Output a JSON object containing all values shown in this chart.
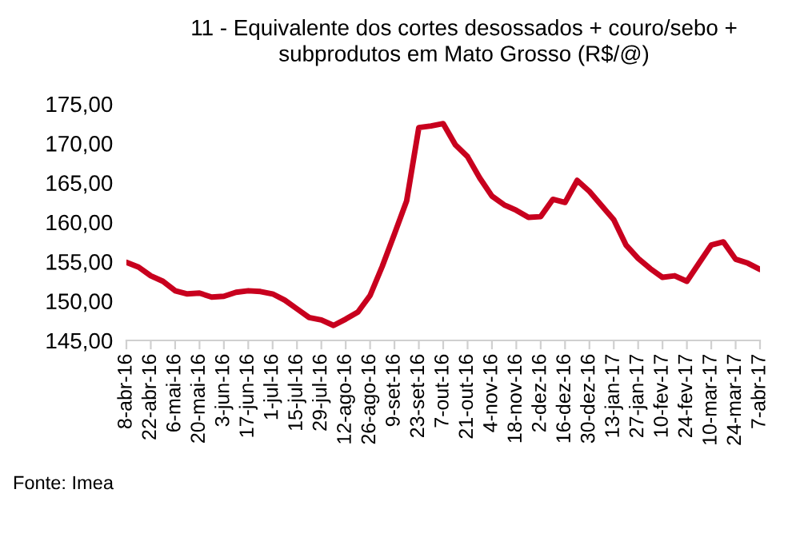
{
  "chart_data": {
    "type": "line",
    "title": "11 - Equivalente dos cortes desossados + couro/sebo +\nsubprodutos em Mato Grosso (R$/@)",
    "categories": [
      "8-abr-16",
      null,
      "22-abr-16",
      null,
      "6-mai-16",
      null,
      "20-mai-16",
      null,
      "3-jun-16",
      null,
      "17-jun-16",
      null,
      "1-jul-16",
      null,
      "15-jul-16",
      null,
      "29-jul-16",
      null,
      "12-ago-16",
      null,
      "26-ago-16",
      null,
      "9-set-16",
      null,
      "23-set-16",
      null,
      "7-out-16",
      null,
      "21-out-16",
      null,
      "4-nov-16",
      null,
      "18-nov-16",
      null,
      "2-dez-16",
      null,
      "16-dez-16",
      null,
      "30-dez-16",
      null,
      "13-jan-17",
      null,
      "27-jan-17",
      null,
      "10-fev-17",
      null,
      "24-fev-17",
      null,
      "10-mar-17",
      null,
      "24-mar-17",
      null,
      "7-abr-17"
    ],
    "series": [
      {
        "color": "#c8001e",
        "values": [
          154.9,
          154.3,
          153.2,
          152.5,
          151.3,
          150.9,
          151.0,
          150.5,
          150.6,
          151.1,
          151.3,
          151.2,
          150.9,
          150.1,
          149.0,
          147.9,
          147.6,
          146.9,
          147.7,
          148.6,
          150.7,
          154.4,
          158.5,
          162.7,
          172.0,
          172.2,
          172.5,
          169.8,
          168.3,
          165.6,
          163.3,
          162.2,
          161.5,
          160.6,
          160.7,
          162.9,
          162.5,
          165.3,
          163.9,
          162.1,
          160.3,
          157.1,
          155.4,
          154.1,
          153.0,
          153.2,
          152.5,
          154.8,
          157.1,
          157.5,
          155.3,
          154.8,
          154.0
        ]
      }
    ],
    "ylim": [
      145,
      175
    ],
    "yticks": [
      {
        "value": 145,
        "label": "145,00"
      },
      {
        "value": 150,
        "label": "150,00"
      },
      {
        "value": 155,
        "label": "155,00"
      },
      {
        "value": 160,
        "label": "160,00"
      },
      {
        "value": 165,
        "label": "165,00"
      },
      {
        "value": 170,
        "label": "170,00"
      },
      {
        "value": 175,
        "label": "175,00"
      }
    ],
    "grid": false,
    "legend": false,
    "marker": "none",
    "line_style": "solid",
    "annotations": [
      "Fonte: Imea"
    ]
  }
}
